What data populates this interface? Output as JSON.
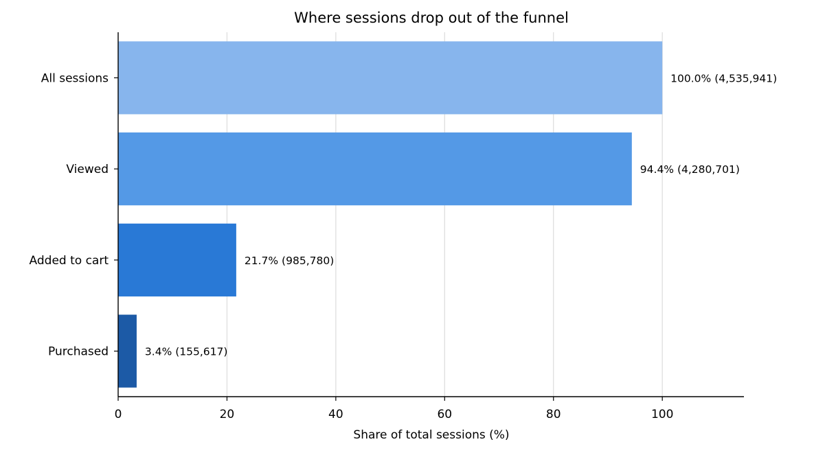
{
  "chart_data": {
    "type": "bar",
    "orientation": "horizontal",
    "title": "Where sessions drop out of the funnel",
    "xlabel": "Share of total sessions (%)",
    "ylabel": "",
    "xlim": [
      0,
      115
    ],
    "xticks": [
      0,
      20,
      40,
      60,
      80,
      100
    ],
    "grid": "vertical",
    "categories": [
      "All sessions",
      "Viewed",
      "Added to cart",
      "Purchased"
    ],
    "values": [
      100.0,
      94.4,
      21.7,
      3.4
    ],
    "counts": [
      4535941,
      4280701,
      985780,
      155617
    ],
    "data_labels": [
      "100.0%  (4,535,941)",
      "94.4%  (4,280,701)",
      "21.7%  (985,780)",
      "3.4%  (155,617)"
    ],
    "colors": [
      "#87b5ed",
      "#5499e6",
      "#2979d6",
      "#1c5aa6"
    ]
  }
}
